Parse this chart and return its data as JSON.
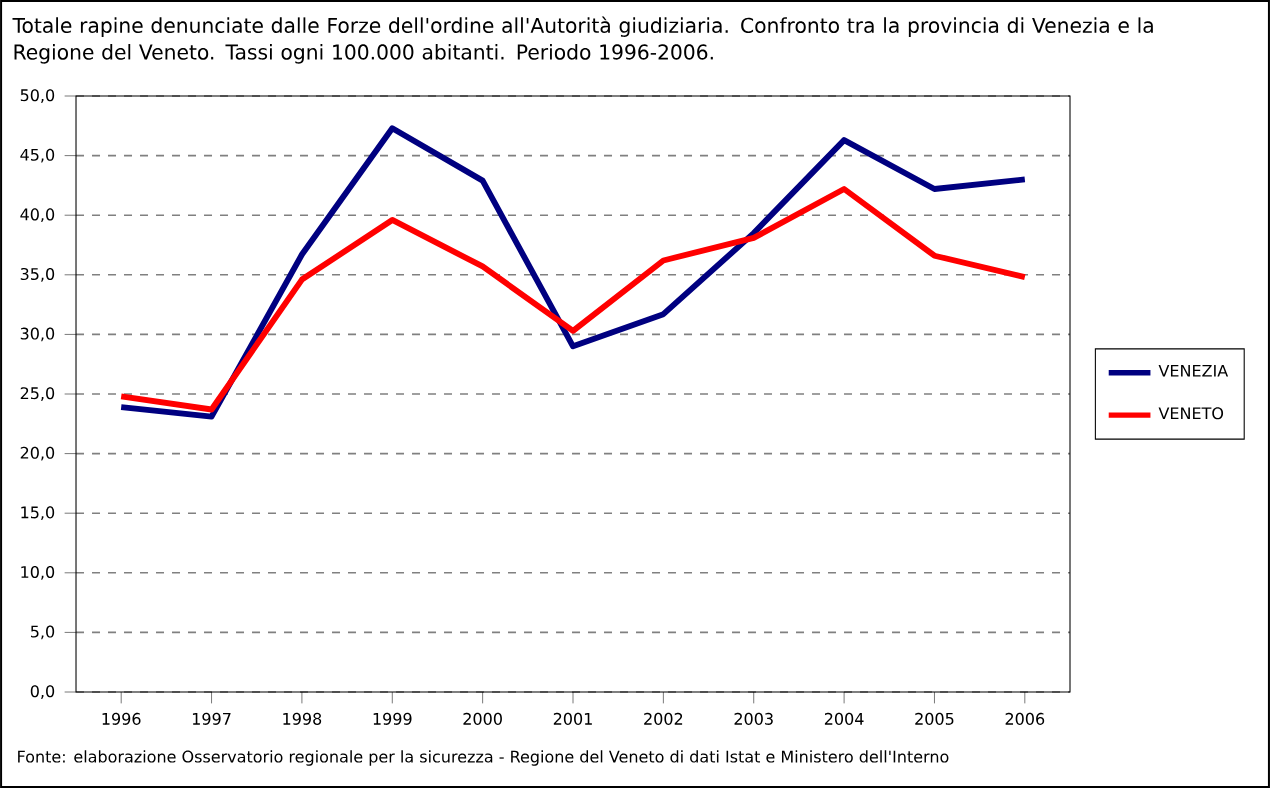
{
  "chart_data": {
    "type": "line",
    "title": "Totale rapine denunciate dalle Forze dell'ordine all'Autorità giudiziaria. Confronto tra la provincia di Venezia e la Regione del Veneto. Tassi ogni 100.000 abitanti. Periodo 1996-2006.",
    "annotations": [
      "Fonte: elaborazione Osservatorio regionale per la sicurezza - Regione del Veneto di dati Istat e Ministero dell'Interno"
    ],
    "categories": [
      "1996",
      "1997",
      "1998",
      "1999",
      "2000",
      "2001",
      "2002",
      "2003",
      "2004",
      "2005",
      "2006"
    ],
    "series": [
      {
        "name": "VENEZIA",
        "color": "#000080",
        "values": [
          23.9,
          23.1,
          36.7,
          47.3,
          42.9,
          29.0,
          31.7,
          38.5,
          46.3,
          42.2,
          43.0
        ]
      },
      {
        "name": "VENETO",
        "color": "#ff0000",
        "values": [
          24.8,
          23.7,
          34.6,
          39.6,
          35.7,
          30.3,
          36.2,
          38.1,
          42.2,
          36.6,
          34.8
        ]
      }
    ],
    "ylim": [
      0,
      50
    ],
    "yticks": [
      {
        "value": 0,
        "label": "0,0"
      },
      {
        "value": 5,
        "label": "5,0"
      },
      {
        "value": 10,
        "label": "10,0"
      },
      {
        "value": 15,
        "label": "15,0"
      },
      {
        "value": 20,
        "label": "20,0"
      },
      {
        "value": 25,
        "label": "25,0"
      },
      {
        "value": 30,
        "label": "30,0"
      },
      {
        "value": 35,
        "label": "35,0"
      },
      {
        "value": 40,
        "label": "40,0"
      },
      {
        "value": 45,
        "label": "45,0"
      },
      {
        "value": 50,
        "label": "50,0"
      }
    ],
    "grid": "y",
    "legend": "right",
    "marker": "none",
    "line_style": "solid"
  }
}
